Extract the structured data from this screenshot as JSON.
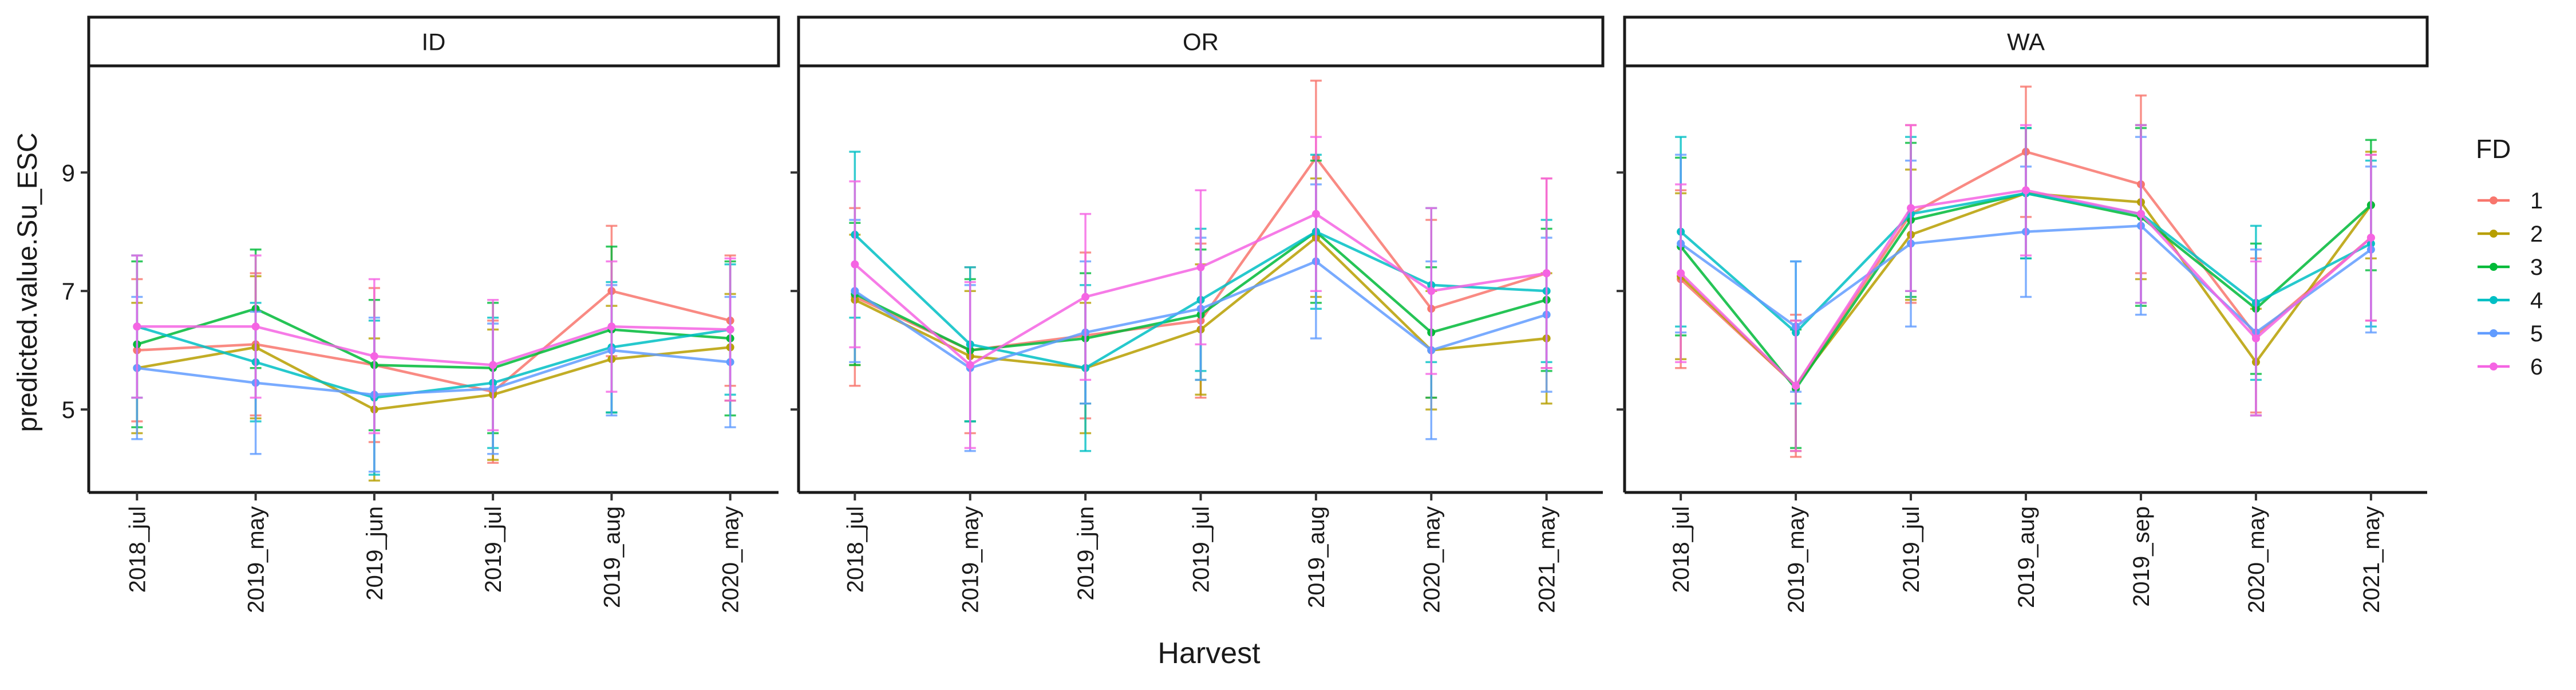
{
  "chart_data": {
    "type": "line",
    "ylabel": "predicted.value.Su_ESC",
    "xlabel": "Harvest",
    "ylim": [
      3.6,
      10.8
    ],
    "yticks": [
      5,
      7,
      9
    ],
    "legend": {
      "title": "FD",
      "position": "right",
      "entries": [
        {
          "name": "1",
          "color": "#F8766D"
        },
        {
          "name": "2",
          "color": "#B79F00"
        },
        {
          "name": "3",
          "color": "#00BA38"
        },
        {
          "name": "4",
          "color": "#00BFC4"
        },
        {
          "name": "5",
          "color": "#619CFF"
        },
        {
          "name": "6",
          "color": "#F564E3"
        }
      ]
    },
    "panels": [
      {
        "name": "ID",
        "categories": [
          "2018_jul",
          "2019_may",
          "2019_jun",
          "2019_jul",
          "2019_aug",
          "2020_may"
        ],
        "series": [
          {
            "name": "1",
            "values": [
              6.0,
              6.1,
              5.75,
              5.3,
              7.0,
              6.5
            ],
            "err": [
              1.2,
              1.2,
              1.3,
              1.2,
              1.1,
              1.1
            ]
          },
          {
            "name": "2",
            "values": [
              5.7,
              6.05,
              5.0,
              5.25,
              5.85,
              6.05
            ],
            "err": [
              1.1,
              1.2,
              1.2,
              1.1,
              0.9,
              0.9
            ]
          },
          {
            "name": "3",
            "values": [
              6.1,
              6.7,
              5.75,
              5.7,
              6.35,
              6.2
            ],
            "err": [
              1.4,
              1.0,
              1.1,
              1.1,
              1.4,
              1.3
            ]
          },
          {
            "name": "4",
            "values": [
              6.4,
              5.8,
              5.2,
              5.45,
              6.05,
              6.35
            ],
            "err": [
              1.2,
              1.0,
              1.3,
              1.1,
              1.1,
              1.1
            ]
          },
          {
            "name": "5",
            "values": [
              5.7,
              5.45,
              5.25,
              5.35,
              6.0,
              5.8
            ],
            "err": [
              1.2,
              1.2,
              1.3,
              1.1,
              1.1,
              1.1
            ]
          },
          {
            "name": "6",
            "values": [
              6.4,
              6.4,
              5.9,
              5.75,
              6.4,
              6.35
            ],
            "err": [
              1.2,
              1.2,
              1.3,
              1.1,
              1.1,
              1.2
            ]
          }
        ]
      },
      {
        "name": "OR",
        "categories": [
          "2018_jul",
          "2019_may",
          "2019_jun",
          "2019_jul",
          "2019_aug",
          "2020_may",
          "2021_may"
        ],
        "series": [
          {
            "name": "1",
            "values": [
              6.9,
              6.0,
              6.25,
              6.5,
              9.25,
              6.7,
              7.3
            ],
            "err": [
              1.5,
              1.4,
              1.4,
              1.3,
              1.3,
              1.5,
              1.6
            ]
          },
          {
            "name": "2",
            "values": [
              6.85,
              5.9,
              5.7,
              6.35,
              7.9,
              6.0,
              6.2
            ],
            "err": [
              1.1,
              1.1,
              1.1,
              1.1,
              1.0,
              1.0,
              1.1
            ]
          },
          {
            "name": "3",
            "values": [
              6.95,
              6.0,
              6.2,
              6.6,
              8.0,
              6.3,
              6.85
            ],
            "err": [
              1.2,
              1.2,
              1.1,
              1.1,
              1.2,
              1.1,
              1.2
            ]
          },
          {
            "name": "4",
            "values": [
              7.95,
              6.1,
              5.7,
              6.85,
              8.0,
              7.1,
              7.0
            ],
            "err": [
              1.4,
              1.3,
              1.4,
              1.2,
              1.3,
              1.3,
              1.2
            ]
          },
          {
            "name": "5",
            "values": [
              7.0,
              5.7,
              6.3,
              6.7,
              7.5,
              6.0,
              6.6
            ],
            "err": [
              1.2,
              1.4,
              1.2,
              1.2,
              1.3,
              1.5,
              1.3
            ]
          },
          {
            "name": "6",
            "values": [
              7.45,
              5.75,
              6.9,
              7.4,
              8.3,
              7.0,
              7.3
            ],
            "err": [
              1.4,
              1.4,
              1.4,
              1.3,
              1.3,
              1.4,
              1.6
            ]
          }
        ]
      },
      {
        "name": "WA",
        "categories": [
          "2018_jul",
          "2019_may",
          "2019_jul",
          "2019_aug",
          "2019_sep",
          "2020_may",
          "2021_may"
        ],
        "series": [
          {
            "name": "1",
            "values": [
              7.2,
              5.4,
              8.3,
              9.35,
              8.8,
              6.25,
              7.9
            ],
            "err": [
              1.5,
              1.2,
              1.5,
              1.1,
              1.5,
              1.3,
              1.4
            ]
          },
          {
            "name": "2",
            "values": [
              7.25,
              5.4,
              7.95,
              8.65,
              8.5,
              5.8,
              8.45
            ],
            "err": [
              1.4,
              1.1,
              1.1,
              1.1,
              1.3,
              0.9,
              0.9
            ]
          },
          {
            "name": "3",
            "values": [
              7.75,
              5.35,
              8.2,
              8.65,
              8.25,
              6.7,
              8.45
            ],
            "err": [
              1.5,
              1.0,
              1.3,
              1.1,
              1.5,
              1.1,
              1.1
            ]
          },
          {
            "name": "4",
            "values": [
              8.0,
              6.3,
              8.3,
              8.65,
              8.3,
              6.8,
              7.8
            ],
            "err": [
              1.6,
              1.2,
              1.3,
              1.1,
              1.5,
              1.3,
              1.4
            ]
          },
          {
            "name": "5",
            "values": [
              7.8,
              6.4,
              7.8,
              8.0,
              8.1,
              6.3,
              7.7
            ],
            "err": [
              1.5,
              1.1,
              1.4,
              1.1,
              1.5,
              1.4,
              1.4
            ]
          },
          {
            "name": "6",
            "values": [
              7.3,
              5.4,
              8.4,
              8.7,
              8.3,
              6.2,
              7.9
            ],
            "err": [
              1.5,
              1.1,
              1.4,
              1.1,
              1.5,
              1.3,
              1.4
            ]
          }
        ]
      }
    ]
  }
}
